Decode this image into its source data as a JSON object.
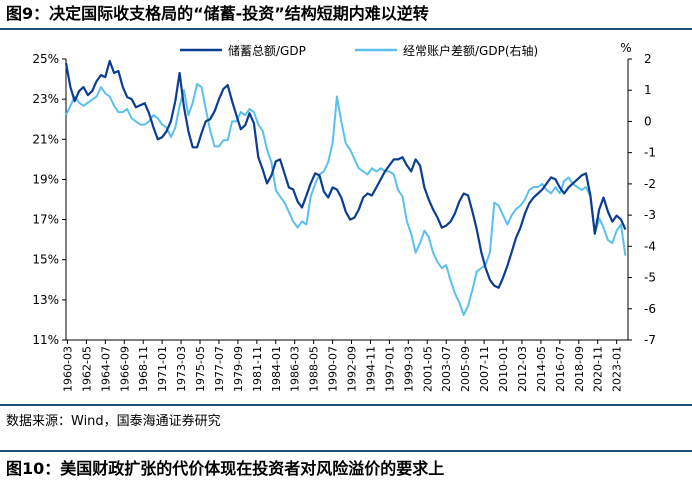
{
  "figure_top": {
    "title": "图9：决定国际收支格局的“储蓄-投资”结构短期内难以逆转"
  },
  "figure_bottom": {
    "title": "图10：美国财政扩张的代价体现在投资者对风险溢价的要求上"
  },
  "source": "数据来源：Wind，国泰海通证券研究",
  "colors": {
    "primary": "#0b3d91",
    "secondary": "#5bc0eb",
    "header_line": "#1f4e79"
  },
  "chart_data": {
    "type": "line",
    "title": "",
    "right_axis_unit": "%",
    "x_tick_labels": [
      "1960-03",
      "1962-05",
      "1964-07",
      "1966-09",
      "1968-11",
      "1971-01",
      "1973-03",
      "1975-05",
      "1977-07",
      "1979-09",
      "1981-11",
      "1984-01",
      "1986-03",
      "1988-05",
      "1990-07",
      "1992-09",
      "1994-11",
      "1997-01",
      "1999-03",
      "2001-05",
      "2003-07",
      "2005-09",
      "2007-11",
      "2010-01",
      "2012-03",
      "2014-05",
      "2016-07",
      "2018-09",
      "2020-11",
      "2023-01"
    ],
    "y_left": {
      "ticks": [
        "25%",
        "23%",
        "21%",
        "19%",
        "17%",
        "15%",
        "13%",
        "11%"
      ],
      "ylim": [
        11,
        25
      ]
    },
    "y_right": {
      "ticks": [
        "2",
        "1",
        "0",
        "-1",
        "-2",
        "-3",
        "-4",
        "-5",
        "-6",
        "-7"
      ],
      "ylim": [
        -7,
        2
      ]
    },
    "grid": false,
    "legend_position": "top",
    "series": [
      {
        "name": "储蓄总额/GDP",
        "axis": "left",
        "color": "#0b3d91",
        "x": [
          1960.0,
          1960.5,
          1961.0,
          1961.5,
          1962.0,
          1962.5,
          1963.0,
          1963.5,
          1964.0,
          1964.5,
          1965.0,
          1965.5,
          1966.0,
          1966.5,
          1967.0,
          1967.5,
          1968.0,
          1968.5,
          1969.0,
          1969.5,
          1970.0,
          1970.5,
          1971.0,
          1971.5,
          1972.0,
          1972.5,
          1973.0,
          1973.5,
          1974.0,
          1974.5,
          1975.0,
          1975.5,
          1976.0,
          1976.5,
          1977.0,
          1977.5,
          1978.0,
          1978.5,
          1979.0,
          1979.5,
          1980.0,
          1980.5,
          1981.0,
          1981.5,
          1982.0,
          1982.5,
          1983.0,
          1983.5,
          1984.0,
          1984.5,
          1985.0,
          1985.5,
          1986.0,
          1986.5,
          1987.0,
          1987.5,
          1988.0,
          1988.5,
          1989.0,
          1989.5,
          1990.0,
          1990.5,
          1991.0,
          1991.5,
          1992.0,
          1992.5,
          1993.0,
          1993.5,
          1994.0,
          1994.5,
          1995.0,
          1995.5,
          1996.0,
          1996.5,
          1997.0,
          1997.5,
          1998.0,
          1998.5,
          1999.0,
          1999.5,
          2000.0,
          2000.5,
          2001.0,
          2001.5,
          2002.0,
          2002.5,
          2003.0,
          2003.5,
          2004.0,
          2004.5,
          2005.0,
          2005.5,
          2006.0,
          2006.5,
          2007.0,
          2007.5,
          2008.0,
          2008.5,
          2009.0,
          2009.5,
          2010.0,
          2010.5,
          2011.0,
          2011.5,
          2012.0,
          2012.5,
          2013.0,
          2013.5,
          2014.0,
          2014.5,
          2015.0,
          2015.5,
          2016.0,
          2016.5,
          2017.0,
          2017.5,
          2018.0,
          2018.5,
          2019.0,
          2019.5,
          2020.0,
          2020.5,
          2021.0,
          2021.5,
          2022.0,
          2022.5,
          2023.0,
          2023.5,
          2024.0
        ],
        "values": [
          24.8,
          23.6,
          22.9,
          23.4,
          23.6,
          23.2,
          23.4,
          23.9,
          24.2,
          24.1,
          24.9,
          24.3,
          24.4,
          23.6,
          23.1,
          23.0,
          22.6,
          22.7,
          22.8,
          22.3,
          21.6,
          21.0,
          21.1,
          21.4,
          21.9,
          22.9,
          24.3,
          22.6,
          21.4,
          20.6,
          20.6,
          21.3,
          21.9,
          22.0,
          22.4,
          23.0,
          23.5,
          23.7,
          22.9,
          22.2,
          21.5,
          21.7,
          22.3,
          21.8,
          20.1,
          19.5,
          18.8,
          19.2,
          19.9,
          20.0,
          19.3,
          18.6,
          18.5,
          17.9,
          17.6,
          18.2,
          18.8,
          19.3,
          19.2,
          18.4,
          18.1,
          18.6,
          18.5,
          18.1,
          17.4,
          17.0,
          17.1,
          17.5,
          18.1,
          18.3,
          18.2,
          18.6,
          19.0,
          19.4,
          19.7,
          20.0,
          20.0,
          20.1,
          19.7,
          19.4,
          20.0,
          19.7,
          18.6,
          18.0,
          17.5,
          17.1,
          16.6,
          16.7,
          16.9,
          17.3,
          17.9,
          18.3,
          18.2,
          17.4,
          16.5,
          15.4,
          14.6,
          14.0,
          13.7,
          13.6,
          14.1,
          14.7,
          15.4,
          16.1,
          16.6,
          17.3,
          17.8,
          18.1,
          18.3,
          18.5,
          18.8,
          19.1,
          19.0,
          18.6,
          18.3,
          18.6,
          18.8,
          19.0,
          19.2,
          19.3,
          18.2,
          16.3,
          17.5,
          18.1,
          17.4,
          16.9,
          17.2,
          17.0,
          16.5
        ]
      },
      {
        "name": "经常账户差额/GDP(右轴)",
        "axis": "right",
        "color": "#5bc0eb",
        "x": [
          1960.0,
          1960.5,
          1961.0,
          1961.5,
          1962.0,
          1962.5,
          1963.0,
          1963.5,
          1964.0,
          1964.5,
          1965.0,
          1965.5,
          1966.0,
          1966.5,
          1967.0,
          1967.5,
          1968.0,
          1968.5,
          1969.0,
          1969.5,
          1970.0,
          1970.5,
          1971.0,
          1971.5,
          1972.0,
          1972.5,
          1973.0,
          1973.5,
          1974.0,
          1974.5,
          1975.0,
          1975.5,
          1976.0,
          1976.5,
          1977.0,
          1977.5,
          1978.0,
          1978.5,
          1979.0,
          1979.5,
          1980.0,
          1980.5,
          1981.0,
          1981.5,
          1982.0,
          1982.5,
          1983.0,
          1983.5,
          1984.0,
          1984.5,
          1985.0,
          1985.5,
          1986.0,
          1986.5,
          1987.0,
          1987.5,
          1988.0,
          1988.5,
          1989.0,
          1989.5,
          1990.0,
          1990.5,
          1991.0,
          1991.5,
          1992.0,
          1992.5,
          1993.0,
          1993.5,
          1994.0,
          1994.5,
          1995.0,
          1995.5,
          1996.0,
          1996.5,
          1997.0,
          1997.5,
          1998.0,
          1998.5,
          1999.0,
          1999.5,
          2000.0,
          2000.5,
          2001.0,
          2001.5,
          2002.0,
          2002.5,
          2003.0,
          2003.5,
          2004.0,
          2004.5,
          2005.0,
          2005.5,
          2006.0,
          2006.5,
          2007.0,
          2007.5,
          2008.0,
          2008.5,
          2009.0,
          2009.5,
          2010.0,
          2010.5,
          2011.0,
          2011.5,
          2012.0,
          2012.5,
          2013.0,
          2013.5,
          2014.0,
          2014.5,
          2015.0,
          2015.5,
          2016.0,
          2016.5,
          2017.0,
          2017.5,
          2018.0,
          2018.5,
          2019.0,
          2019.5,
          2020.0,
          2020.5,
          2021.0,
          2021.5,
          2022.0,
          2022.5,
          2023.0,
          2023.5,
          2024.0
        ],
        "values": [
          0.2,
          0.5,
          0.8,
          0.6,
          0.5,
          0.6,
          0.7,
          0.8,
          1.1,
          0.9,
          0.8,
          0.5,
          0.3,
          0.3,
          0.4,
          0.1,
          0.0,
          -0.1,
          -0.1,
          0.0,
          0.2,
          0.1,
          -0.1,
          -0.2,
          -0.5,
          -0.2,
          0.5,
          1.0,
          0.2,
          0.6,
          1.2,
          1.1,
          0.4,
          -0.3,
          -0.8,
          -0.8,
          -0.6,
          -0.6,
          0.0,
          0.0,
          0.3,
          0.2,
          0.4,
          0.3,
          -0.1,
          -0.3,
          -0.9,
          -1.3,
          -2.2,
          -2.4,
          -2.6,
          -2.9,
          -3.2,
          -3.4,
          -3.2,
          -3.3,
          -2.4,
          -2.0,
          -1.7,
          -1.6,
          -1.3,
          -0.7,
          0.8,
          0.0,
          -0.7,
          -0.9,
          -1.2,
          -1.5,
          -1.6,
          -1.7,
          -1.5,
          -1.6,
          -1.5,
          -1.6,
          -1.6,
          -1.7,
          -2.2,
          -2.4,
          -3.2,
          -3.6,
          -4.2,
          -3.9,
          -3.5,
          -3.7,
          -4.2,
          -4.5,
          -4.7,
          -4.6,
          -5.1,
          -5.5,
          -5.8,
          -6.2,
          -5.9,
          -5.4,
          -4.8,
          -4.7,
          -4.6,
          -4.2,
          -2.6,
          -2.7,
          -3.0,
          -3.3,
          -3.0,
          -2.8,
          -2.7,
          -2.5,
          -2.2,
          -2.1,
          -2.1,
          -2.0,
          -2.2,
          -2.3,
          -2.1,
          -2.3,
          -1.9,
          -1.8,
          -2.0,
          -2.1,
          -2.2,
          -2.1,
          -2.4,
          -3.6,
          -3.1,
          -3.4,
          -3.8,
          -3.9,
          -3.5,
          -3.3,
          -4.3
        ]
      }
    ]
  }
}
